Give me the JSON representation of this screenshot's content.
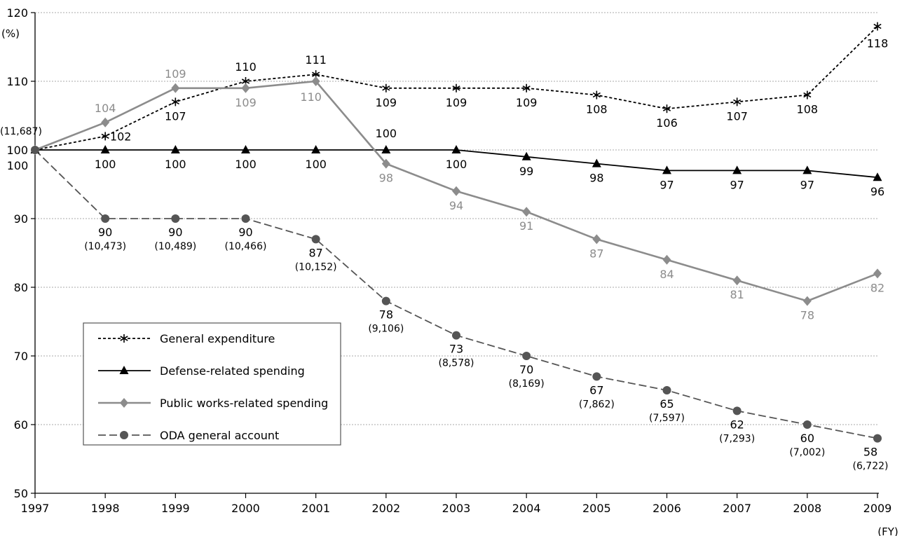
{
  "chart_data": {
    "type": "line",
    "ylabel": "(%)",
    "xunit": "(FY)",
    "ylim": [
      50,
      120
    ],
    "yticks": [
      50,
      60,
      70,
      80,
      90,
      100,
      110,
      120
    ],
    "grid": true,
    "legend_position": "bottom-left",
    "categories": [
      "1997",
      "1998",
      "1999",
      "2000",
      "2001",
      "2002",
      "2003",
      "2004",
      "2005",
      "2006",
      "2007",
      "2008",
      "2009"
    ],
    "series": [
      {
        "name": "General expenditure",
        "style": "dotted",
        "marker": "asterisk",
        "color": "#000000",
        "values": [
          100,
          102,
          107,
          110,
          111,
          109,
          109,
          109,
          108,
          106,
          107,
          108,
          118
        ],
        "labels": [
          "",
          "102",
          "107",
          "110",
          "111",
          "109",
          "109",
          "109",
          "108",
          "106",
          "107",
          "108",
          "118"
        ]
      },
      {
        "name": "Defense-related spending",
        "style": "solid",
        "marker": "triangle",
        "color": "#000000",
        "values": [
          100,
          100,
          100,
          100,
          100,
          100,
          100,
          99,
          98,
          97,
          97,
          97,
          96
        ],
        "labels": [
          "100",
          "100",
          "100",
          "100",
          "100",
          "100",
          "100",
          "99",
          "98",
          "97",
          "97",
          "97",
          "96"
        ]
      },
      {
        "name": "Public works-related spending",
        "style": "solid",
        "marker": "diamond",
        "color": "#8c8c8c",
        "values": [
          100,
          104,
          109,
          109,
          110,
          98,
          94,
          91,
          87,
          84,
          81,
          78,
          82
        ],
        "labels": [
          "",
          "104",
          "109",
          "109",
          "110",
          "98",
          "94",
          "91",
          "87",
          "84",
          "81",
          "78",
          "82"
        ]
      },
      {
        "name": "ODA general account",
        "style": "dashed",
        "marker": "circle",
        "color": "#555555",
        "values": [
          100,
          90,
          90,
          90,
          87,
          78,
          73,
          70,
          67,
          65,
          62,
          60,
          58
        ],
        "labels": [
          "",
          "90",
          "90",
          "90",
          "87",
          "78",
          "73",
          "70",
          "67",
          "65",
          "62",
          "60",
          "58"
        ],
        "amounts": [
          "(11,687)",
          "(10,473)",
          "(10,489)",
          "(10,466)",
          "(10,152)",
          "(9,106)",
          "(8,578)",
          "(8,169)",
          "(7,862)",
          "(7,597)",
          "(7,293)",
          "(7,002)",
          "(6,722)"
        ]
      }
    ]
  }
}
